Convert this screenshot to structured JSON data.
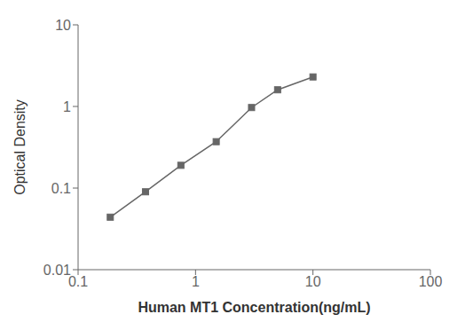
{
  "chart_data": {
    "type": "line",
    "x": [
      0.188,
      0.375,
      0.75,
      1.5,
      3.0,
      5.0,
      10.0
    ],
    "values": [
      0.044,
      0.09,
      0.19,
      0.37,
      0.97,
      1.6,
      2.3
    ],
    "xlim": [
      0.1,
      100
    ],
    "ylim": [
      0.01,
      10
    ],
    "xticks": [
      0.1,
      1,
      10,
      100
    ],
    "yticks": [
      0.01,
      0.1,
      1,
      10
    ],
    "xlabel": "Human MT1 Concentration(ng/mL)",
    "ylabel": "Optical Density",
    "log": true,
    "grid": false,
    "color": "#666666",
    "marker": "square"
  }
}
